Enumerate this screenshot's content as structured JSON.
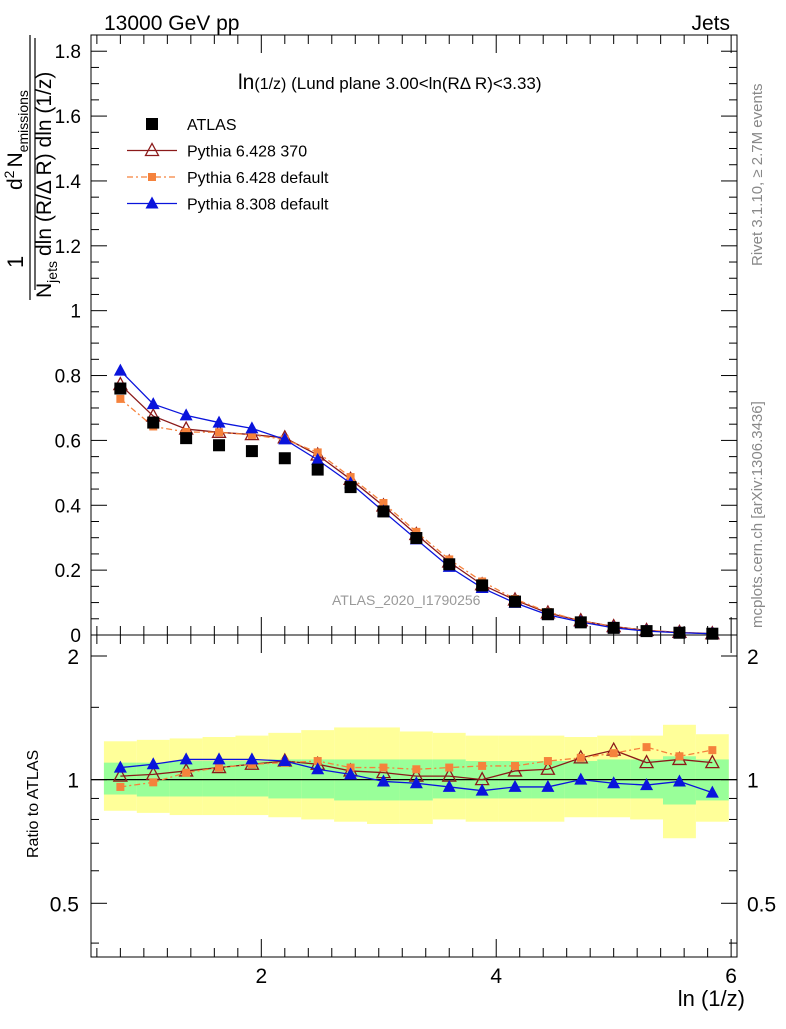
{
  "header": {
    "left": "13000 GeV pp",
    "right": "Jets"
  },
  "side_texts": {
    "rivet": "Rivet 3.1.10, ≥ 2.7M events",
    "mcplots": "mcplots.cern.ch [arXiv:1306.3436]"
  },
  "watermark": "ATLAS_2020_I1790256",
  "colors": {
    "atlas": "#000000",
    "py6_370": "#8b1a1a",
    "py6_default": "#f5823c",
    "py8_default": "#0a14dc",
    "band_yellow": "#ffff99",
    "band_green": "#99ff99"
  },
  "chart_data": [
    {
      "type": "scatter",
      "panel": "main",
      "title": "ln(1/z) (Lund plane 3.00<ln(RΔ R)<3.33)",
      "title_parts": [
        "ln",
        "(1/z)",
        " (Lund plane 3.00<ln(RΔ R)<3.33)"
      ],
      "ylabel_parts": {
        "one": "1",
        "njets": "N",
        "njets_sub": "jets",
        "d2": "d",
        "d2_sup": "2",
        "nemis": "N",
        "nemis_sub": "emissions",
        "denom": "dln (R/Δ R) dln (1/z)"
      },
      "xlim": [
        0.55,
        6.05
      ],
      "ylim": [
        0,
        1.85
      ],
      "yticks": [
        0,
        0.2,
        0.4,
        0.6,
        0.8,
        1,
        1.2,
        1.4,
        1.6,
        1.8
      ],
      "ytick_labels": [
        "0",
        "0.2",
        "0.4",
        "0.6",
        "0.8",
        "1",
        "1.2",
        "1.4",
        "1.6",
        "1.8"
      ],
      "legend_position": "top-left",
      "x": [
        0.8,
        1.08,
        1.36,
        1.64,
        1.92,
        2.2,
        2.48,
        2.76,
        3.04,
        3.32,
        3.6,
        3.88,
        4.16,
        4.44,
        4.72,
        5.0,
        5.28,
        5.56,
        5.84
      ],
      "series": [
        {
          "name": "ATLAS",
          "marker": "square",
          "color": "#000000",
          "values": [
            0.76,
            0.655,
            0.607,
            0.585,
            0.567,
            0.545,
            0.51,
            0.456,
            0.381,
            0.299,
            0.218,
            0.153,
            0.103,
            0.064,
            0.039,
            0.022,
            0.012,
            0.007,
            0.004
          ]
        },
        {
          "name": "Pythia 6.428 370",
          "marker": "triangle-open",
          "color": "#8b1a1a",
          "line": "solid",
          "values": [
            0.772,
            0.675,
            0.635,
            0.625,
            0.618,
            0.608,
            0.555,
            0.48,
            0.398,
            0.31,
            0.225,
            0.155,
            0.108,
            0.068,
            0.044,
            0.026,
            0.014,
            0.008,
            0.004
          ]
        },
        {
          "name": "Pythia 6.428 default",
          "marker": "square-small",
          "color": "#f5823c",
          "line": "dashdot",
          "values": [
            0.728,
            0.643,
            0.626,
            0.625,
            0.617,
            0.603,
            0.563,
            0.487,
            0.407,
            0.318,
            0.233,
            0.165,
            0.111,
            0.071,
            0.044,
            0.025,
            0.015,
            0.008,
            0.005
          ]
        },
        {
          "name": "Pythia 8.308 default",
          "marker": "triangle-filled",
          "color": "#0a14dc",
          "line": "solid",
          "values": [
            0.815,
            0.712,
            0.677,
            0.655,
            0.637,
            0.603,
            0.54,
            0.468,
            0.381,
            0.295,
            0.21,
            0.145,
            0.099,
            0.062,
            0.04,
            0.022,
            0.012,
            0.007,
            0.004
          ]
        }
      ]
    },
    {
      "type": "line",
      "panel": "ratio",
      "ylabel": "Ratio to ATLAS",
      "xlabel": "ln (1/z)",
      "scale": "log",
      "ylim": [
        0.37,
        2.25
      ],
      "yticks": [
        0.5,
        1,
        2
      ],
      "ytick_labels": [
        "0.5",
        "1",
        "2"
      ],
      "xticks": [
        2,
        4,
        6
      ],
      "xtick_labels": [
        "2",
        "4",
        "6"
      ],
      "xlim": [
        0.55,
        6.05
      ],
      "bin_edges": [
        0.66,
        0.94,
        1.22,
        1.5,
        1.78,
        2.06,
        2.34,
        2.62,
        2.9,
        3.18,
        3.46,
        3.74,
        4.02,
        4.3,
        4.58,
        4.86,
        5.14,
        5.42,
        5.7,
        5.98
      ],
      "band_yellow_lo": [
        0.84,
        0.83,
        0.82,
        0.82,
        0.82,
        0.81,
        0.8,
        0.79,
        0.78,
        0.78,
        0.8,
        0.79,
        0.79,
        0.79,
        0.81,
        0.81,
        0.8,
        0.72,
        0.79
      ],
      "band_yellow_hi": [
        1.24,
        1.25,
        1.26,
        1.27,
        1.28,
        1.3,
        1.32,
        1.34,
        1.34,
        1.31,
        1.3,
        1.28,
        1.28,
        1.28,
        1.27,
        1.28,
        1.28,
        1.36,
        1.29
      ],
      "band_green_lo": [
        0.92,
        0.91,
        0.91,
        0.91,
        0.91,
        0.9,
        0.9,
        0.89,
        0.89,
        0.89,
        0.9,
        0.9,
        0.9,
        0.9,
        0.9,
        0.9,
        0.9,
        0.87,
        0.89
      ],
      "band_green_hi": [
        1.1,
        1.1,
        1.11,
        1.11,
        1.11,
        1.12,
        1.12,
        1.12,
        1.12,
        1.12,
        1.12,
        1.11,
        1.11,
        1.11,
        1.11,
        1.12,
        1.12,
        1.14,
        1.12
      ],
      "x": [
        0.8,
        1.08,
        1.36,
        1.64,
        1.92,
        2.2,
        2.48,
        2.76,
        3.04,
        3.32,
        3.6,
        3.88,
        4.16,
        4.44,
        4.72,
        5.0,
        5.28,
        5.56,
        5.84
      ],
      "series": [
        {
          "name": "Pythia 6.428 370",
          "color": "#8b1a1a",
          "marker": "triangle-open",
          "line": "solid",
          "values": [
            1.02,
            1.03,
            1.05,
            1.07,
            1.09,
            1.11,
            1.09,
            1.05,
            1.04,
            1.02,
            1.02,
            1.0,
            1.05,
            1.06,
            1.13,
            1.18,
            1.1,
            1.12,
            1.1
          ]
        },
        {
          "name": "Pythia 6.428 default",
          "color": "#f5823c",
          "marker": "square-small",
          "line": "dashdot",
          "values": [
            0.96,
            0.985,
            1.04,
            1.07,
            1.09,
            1.1,
            1.11,
            1.07,
            1.07,
            1.06,
            1.07,
            1.08,
            1.08,
            1.11,
            1.13,
            1.16,
            1.2,
            1.14,
            1.18
          ]
        },
        {
          "name": "Pythia 8.308 default",
          "color": "#0a14dc",
          "marker": "triangle-filled",
          "line": "solid",
          "values": [
            1.07,
            1.09,
            1.12,
            1.12,
            1.12,
            1.11,
            1.06,
            1.03,
            0.99,
            0.98,
            0.96,
            0.94,
            0.96,
            0.96,
            1.0,
            0.98,
            0.97,
            0.99,
            0.93
          ]
        }
      ]
    }
  ]
}
